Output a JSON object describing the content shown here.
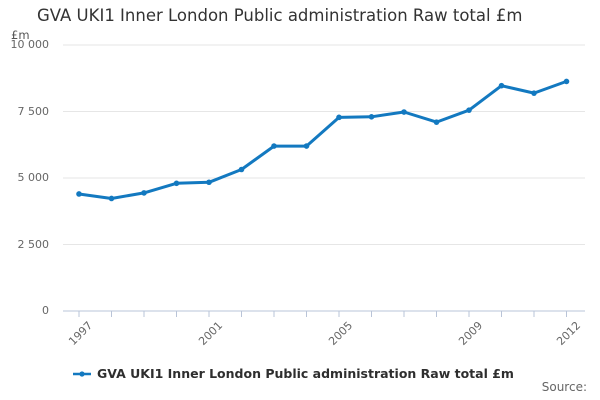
{
  "title": "GVA UKI1 Inner London Public administration Raw total £m",
  "y_axis_unit_label": "£m",
  "legend": {
    "label": "GVA UKI1 Inner London Public administration Raw total £m",
    "marker": "line-with-dot"
  },
  "source": {
    "label": "Source:"
  },
  "colors": {
    "series_line": "#1379c0",
    "grid_line": "#e6e6e6",
    "axis_line": "#b9c4d8",
    "title_text": "#333333",
    "tick_label_text": "#666666",
    "legend_text": "#2e2e2e",
    "source_text": "#666666",
    "background": "#ffffff"
  },
  "chart_data": {
    "type": "line",
    "title": "GVA UKI1 Inner London Public administration Raw total £m",
    "xlabel": "",
    "ylabel": "£m",
    "x": [
      1997,
      1998,
      1999,
      2000,
      2001,
      2002,
      2003,
      2004,
      2005,
      2006,
      2007,
      2008,
      2009,
      2010,
      2011,
      2012
    ],
    "series": [
      {
        "name": "GVA UKI1 Inner London Public administration Raw total £m",
        "values": [
          4400,
          4230,
          4440,
          4800,
          4840,
          5320,
          6200,
          6200,
          7280,
          7300,
          7480,
          7100,
          7550,
          8470,
          8190,
          8630
        ]
      }
    ],
    "ylim": [
      0,
      10000
    ],
    "yticks": [
      {
        "value": 0,
        "label": "0"
      },
      {
        "value": 2500,
        "label": "2 500"
      },
      {
        "value": 5000,
        "label": "5 000"
      },
      {
        "value": 7500,
        "label": "7 500"
      },
      {
        "value": 10000,
        "label": "10 000"
      }
    ],
    "xticks_labeled": [
      1997,
      2001,
      2005,
      2009,
      2012
    ],
    "grid": "horizontal-only",
    "legend_position": "bottom",
    "marker": "circle"
  }
}
